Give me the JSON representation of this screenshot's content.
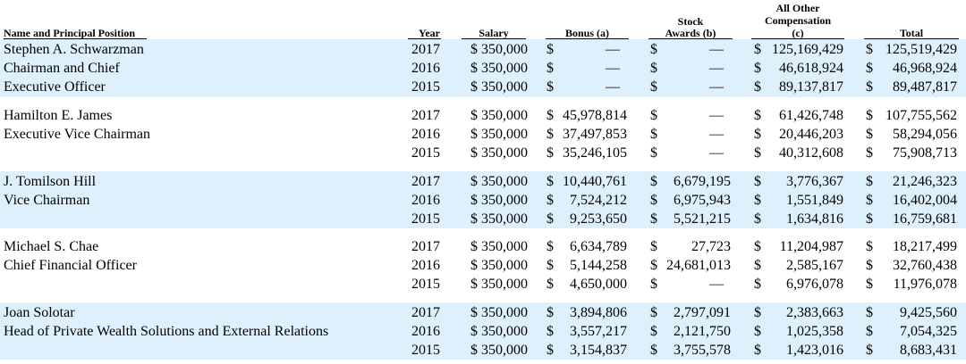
{
  "header": {
    "name_position": "Name and Principal Position",
    "year": "Year",
    "salary": "Salary",
    "bonus": "Bonus (a)",
    "stock_line1": "Stock",
    "stock_line2": "Awards (b)",
    "other_line1": "All Other",
    "other_line2": "Compensation",
    "other_line3": "(c)",
    "total": "Total"
  },
  "dollar": "$",
  "dash": "—",
  "band_color": "#ddf0fb",
  "rows": [
    {
      "label": "Stephen A. Schwarzman",
      "year": "2017",
      "salary": "$ 350,000",
      "bonus": "—",
      "stock": "—",
      "other": "125,169,429",
      "total": "125,519,429"
    },
    {
      "label": "Chairman and Chief",
      "year": "2016",
      "salary": "$ 350,000",
      "bonus": "—",
      "stock": "—",
      "other": "46,618,924",
      "total": "46,968,924"
    },
    {
      "label": "Executive Officer",
      "year": "2015",
      "salary": "$ 350,000",
      "bonus": "—",
      "stock": "—",
      "other": "89,137,817",
      "total": "89,487,817"
    },
    {
      "label": "Hamilton E. James",
      "year": "2017",
      "salary": "$ 350,000",
      "bonus": "45,978,814",
      "stock": "—",
      "other": "61,426,748",
      "total": "107,755,562"
    },
    {
      "label": "Executive Vice Chairman",
      "year": "2016",
      "salary": "$ 350,000",
      "bonus": "37,497,853",
      "stock": "—",
      "other": "20,446,203",
      "total": "58,294,056"
    },
    {
      "label": "",
      "year": "2015",
      "salary": "$ 350,000",
      "bonus": "35,246,105",
      "stock": "—",
      "other": "40,312,608",
      "total": "75,908,713"
    },
    {
      "label": "J. Tomilson Hill",
      "year": "2017",
      "salary": "$ 350,000",
      "bonus": "10,440,761",
      "stock": "6,679,195",
      "other": "3,776,367",
      "total": "21,246,323"
    },
    {
      "label": "Vice Chairman",
      "year": "2016",
      "salary": "$ 350,000",
      "bonus": "7,524,212",
      "stock": "6,975,943",
      "other": "1,551,849",
      "total": "16,402,004"
    },
    {
      "label": "",
      "year": "2015",
      "salary": "$ 350,000",
      "bonus": "9,253,650",
      "stock": "5,521,215",
      "other": "1,634,816",
      "total": "16,759,681"
    },
    {
      "label": "Michael S. Chae",
      "year": "2017",
      "salary": "$ 350,000",
      "bonus": "6,634,789",
      "stock": "27,723",
      "other": "11,204,987",
      "total": "18,217,499"
    },
    {
      "label": "Chief Financial Officer",
      "year": "2016",
      "salary": "$ 350,000",
      "bonus": "5,144,258",
      "stock": "24,681,013",
      "other": "2,585,167",
      "total": "32,760,438"
    },
    {
      "label": "",
      "year": "2015",
      "salary": "$ 350,000",
      "bonus": "4,650,000",
      "stock": "—",
      "other": "6,976,078",
      "total": "11,976,078"
    },
    {
      "label": "Joan Solotar",
      "year": "2017",
      "salary": "$ 350,000",
      "bonus": "3,894,806",
      "stock": "2,797,091",
      "other": "2,383,663",
      "total": "9,425,560"
    },
    {
      "label": "Head of Private Wealth Solutions and External Relations",
      "year": "2016",
      "salary": "$ 350,000",
      "bonus": "3,557,217",
      "stock": "2,121,750",
      "other": "1,025,358",
      "total": "7,054,325"
    },
    {
      "label": "",
      "year": "2015",
      "salary": "$ 350,000",
      "bonus": "3,154,837",
      "stock": "3,755,578",
      "other": "1,423,016",
      "total": "8,683,431"
    }
  ]
}
